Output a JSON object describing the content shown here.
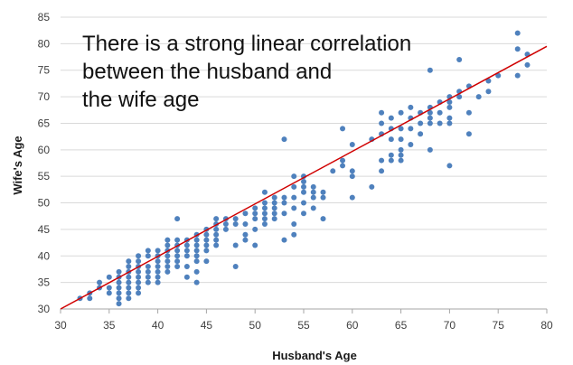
{
  "chart_data": {
    "type": "scatter",
    "xlabel": "Husband's Age",
    "ylabel": "Wife's Age",
    "xlim": [
      30,
      80
    ],
    "ylim": [
      30,
      85
    ],
    "x_ticks": [
      30,
      35,
      40,
      45,
      50,
      55,
      60,
      65,
      70,
      75,
      80
    ],
    "y_ticks": [
      30,
      35,
      40,
      45,
      50,
      55,
      60,
      65,
      70,
      75,
      80,
      85
    ],
    "grid": "horizontal",
    "point_color": "#4f81bd",
    "trendline_color": "#d00000",
    "trendline": [
      [
        30,
        30
      ],
      [
        80,
        79.5
      ]
    ],
    "annotation_lines": [
      "There is a strong linear correlation",
      "between the husband and",
      "the wife age"
    ],
    "points": [
      [
        32,
        32
      ],
      [
        33,
        32
      ],
      [
        33,
        33
      ],
      [
        34,
        34
      ],
      [
        34,
        35
      ],
      [
        35,
        33
      ],
      [
        35,
        34
      ],
      [
        35,
        36
      ],
      [
        36,
        31
      ],
      [
        36,
        32
      ],
      [
        36,
        33
      ],
      [
        36,
        34
      ],
      [
        36,
        35
      ],
      [
        36,
        36
      ],
      [
        36,
        37
      ],
      [
        37,
        32
      ],
      [
        37,
        33
      ],
      [
        37,
        34
      ],
      [
        37,
        35
      ],
      [
        37,
        36
      ],
      [
        37,
        37
      ],
      [
        37,
        38
      ],
      [
        37,
        39
      ],
      [
        38,
        33
      ],
      [
        38,
        34
      ],
      [
        38,
        35
      ],
      [
        38,
        36
      ],
      [
        38,
        37
      ],
      [
        38,
        38
      ],
      [
        38,
        39
      ],
      [
        38,
        40
      ],
      [
        39,
        35
      ],
      [
        39,
        36
      ],
      [
        39,
        37
      ],
      [
        39,
        38
      ],
      [
        39,
        40
      ],
      [
        39,
        41
      ],
      [
        40,
        35
      ],
      [
        40,
        36
      ],
      [
        40,
        37
      ],
      [
        40,
        38
      ],
      [
        40,
        39
      ],
      [
        40,
        40
      ],
      [
        40,
        41
      ],
      [
        41,
        37
      ],
      [
        41,
        38
      ],
      [
        41,
        39
      ],
      [
        41,
        40
      ],
      [
        41,
        41
      ],
      [
        41,
        42
      ],
      [
        41,
        43
      ],
      [
        42,
        38
      ],
      [
        42,
        39
      ],
      [
        42,
        40
      ],
      [
        42,
        41
      ],
      [
        42,
        42
      ],
      [
        42,
        43
      ],
      [
        42,
        47
      ],
      [
        43,
        36
      ],
      [
        43,
        38
      ],
      [
        43,
        40
      ],
      [
        43,
        41
      ],
      [
        43,
        42
      ],
      [
        43,
        43
      ],
      [
        44,
        35
      ],
      [
        44,
        37
      ],
      [
        44,
        39
      ],
      [
        44,
        40
      ],
      [
        44,
        41
      ],
      [
        44,
        42
      ],
      [
        44,
        43
      ],
      [
        44,
        44
      ],
      [
        45,
        39
      ],
      [
        45,
        41
      ],
      [
        45,
        42
      ],
      [
        45,
        43
      ],
      [
        45,
        44
      ],
      [
        45,
        45
      ],
      [
        46,
        42
      ],
      [
        46,
        43
      ],
      [
        46,
        44
      ],
      [
        46,
        45
      ],
      [
        46,
        46
      ],
      [
        46,
        47
      ],
      [
        47,
        45
      ],
      [
        47,
        46
      ],
      [
        47,
        47
      ],
      [
        48,
        38
      ],
      [
        48,
        42
      ],
      [
        48,
        46
      ],
      [
        48,
        47
      ],
      [
        49,
        43
      ],
      [
        49,
        44
      ],
      [
        49,
        46
      ],
      [
        49,
        48
      ],
      [
        50,
        42
      ],
      [
        50,
        45
      ],
      [
        50,
        47
      ],
      [
        50,
        48
      ],
      [
        50,
        49
      ],
      [
        51,
        46
      ],
      [
        51,
        47
      ],
      [
        51,
        48
      ],
      [
        51,
        49
      ],
      [
        51,
        50
      ],
      [
        51,
        52
      ],
      [
        52,
        47
      ],
      [
        52,
        48
      ],
      [
        52,
        49
      ],
      [
        52,
        50
      ],
      [
        52,
        51
      ],
      [
        53,
        43
      ],
      [
        53,
        48
      ],
      [
        53,
        50
      ],
      [
        53,
        51
      ],
      [
        53,
        62
      ],
      [
        54,
        44
      ],
      [
        54,
        46
      ],
      [
        54,
        49
      ],
      [
        54,
        51
      ],
      [
        54,
        53
      ],
      [
        54,
        55
      ],
      [
        55,
        48
      ],
      [
        55,
        50
      ],
      [
        55,
        52
      ],
      [
        55,
        53
      ],
      [
        55,
        54
      ],
      [
        55,
        55
      ],
      [
        56,
        49
      ],
      [
        56,
        51
      ],
      [
        56,
        52
      ],
      [
        56,
        53
      ],
      [
        57,
        47
      ],
      [
        57,
        51
      ],
      [
        57,
        52
      ],
      [
        58,
        56
      ],
      [
        59,
        57
      ],
      [
        59,
        58
      ],
      [
        59,
        64
      ],
      [
        60,
        51
      ],
      [
        60,
        55
      ],
      [
        60,
        56
      ],
      [
        60,
        61
      ],
      [
        62,
        53
      ],
      [
        62,
        62
      ],
      [
        63,
        56
      ],
      [
        63,
        58
      ],
      [
        63,
        63
      ],
      [
        63,
        65
      ],
      [
        63,
        67
      ],
      [
        64,
        58
      ],
      [
        64,
        59
      ],
      [
        64,
        62
      ],
      [
        64,
        64
      ],
      [
        64,
        66
      ],
      [
        65,
        58
      ],
      [
        65,
        59
      ],
      [
        65,
        60
      ],
      [
        65,
        62
      ],
      [
        65,
        64
      ],
      [
        65,
        67
      ],
      [
        66,
        61
      ],
      [
        66,
        64
      ],
      [
        66,
        66
      ],
      [
        66,
        68
      ],
      [
        67,
        63
      ],
      [
        67,
        65
      ],
      [
        67,
        67
      ],
      [
        68,
        60
      ],
      [
        68,
        65
      ],
      [
        68,
        66
      ],
      [
        68,
        67
      ],
      [
        68,
        68
      ],
      [
        68,
        75
      ],
      [
        69,
        65
      ],
      [
        69,
        67
      ],
      [
        69,
        69
      ],
      [
        70,
        57
      ],
      [
        70,
        65
      ],
      [
        70,
        66
      ],
      [
        70,
        68
      ],
      [
        70,
        69
      ],
      [
        70,
        70
      ],
      [
        71,
        70
      ],
      [
        71,
        71
      ],
      [
        71,
        77
      ],
      [
        72,
        63
      ],
      [
        72,
        67
      ],
      [
        72,
        72
      ],
      [
        73,
        70
      ],
      [
        74,
        71
      ],
      [
        74,
        73
      ],
      [
        75,
        74
      ],
      [
        77,
        74
      ],
      [
        77,
        79
      ],
      [
        77,
        82
      ],
      [
        78,
        76
      ],
      [
        78,
        78
      ]
    ]
  }
}
